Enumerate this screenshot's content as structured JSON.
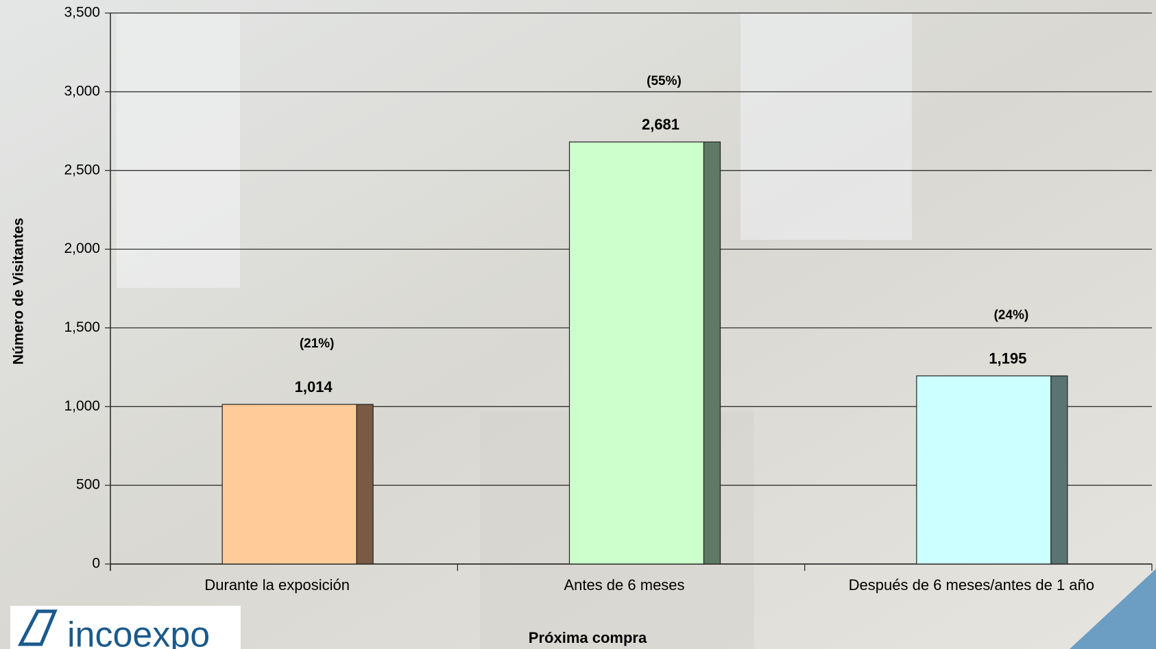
{
  "chart_data": {
    "type": "bar",
    "xlabel": "Próxima compra",
    "ylabel": "Número de Visitantes",
    "categories": [
      "Durante la exposición",
      "Antes de 6 meses",
      "Después de 6 meses/antes de 1 año"
    ],
    "values": [
      1014,
      2681,
      1195
    ],
    "value_labels": [
      "1,014",
      "2,681",
      "1,195"
    ],
    "percent_labels": [
      "(21%)",
      "(55%)",
      "(24%)"
    ],
    "colors": [
      "#ffcc99",
      "#ccffcc",
      "#ccffff"
    ],
    "side_colors": [
      "#7a5a44",
      "#5e7a66",
      "#5a7474"
    ],
    "ylim": [
      0,
      3500
    ],
    "yticks": [
      0,
      500,
      {
        "value": 1000,
        "label": "1,000"
      },
      {
        "value": 1500,
        "label": "1,500"
      },
      {
        "value": 2000,
        "label": "2,000"
      },
      {
        "value": 2500,
        "label": "2,500"
      },
      {
        "value": 3000,
        "label": "3,000"
      },
      {
        "value": 3500,
        "label": "3,500"
      }
    ],
    "grid": true
  },
  "logo": "incoexpo"
}
